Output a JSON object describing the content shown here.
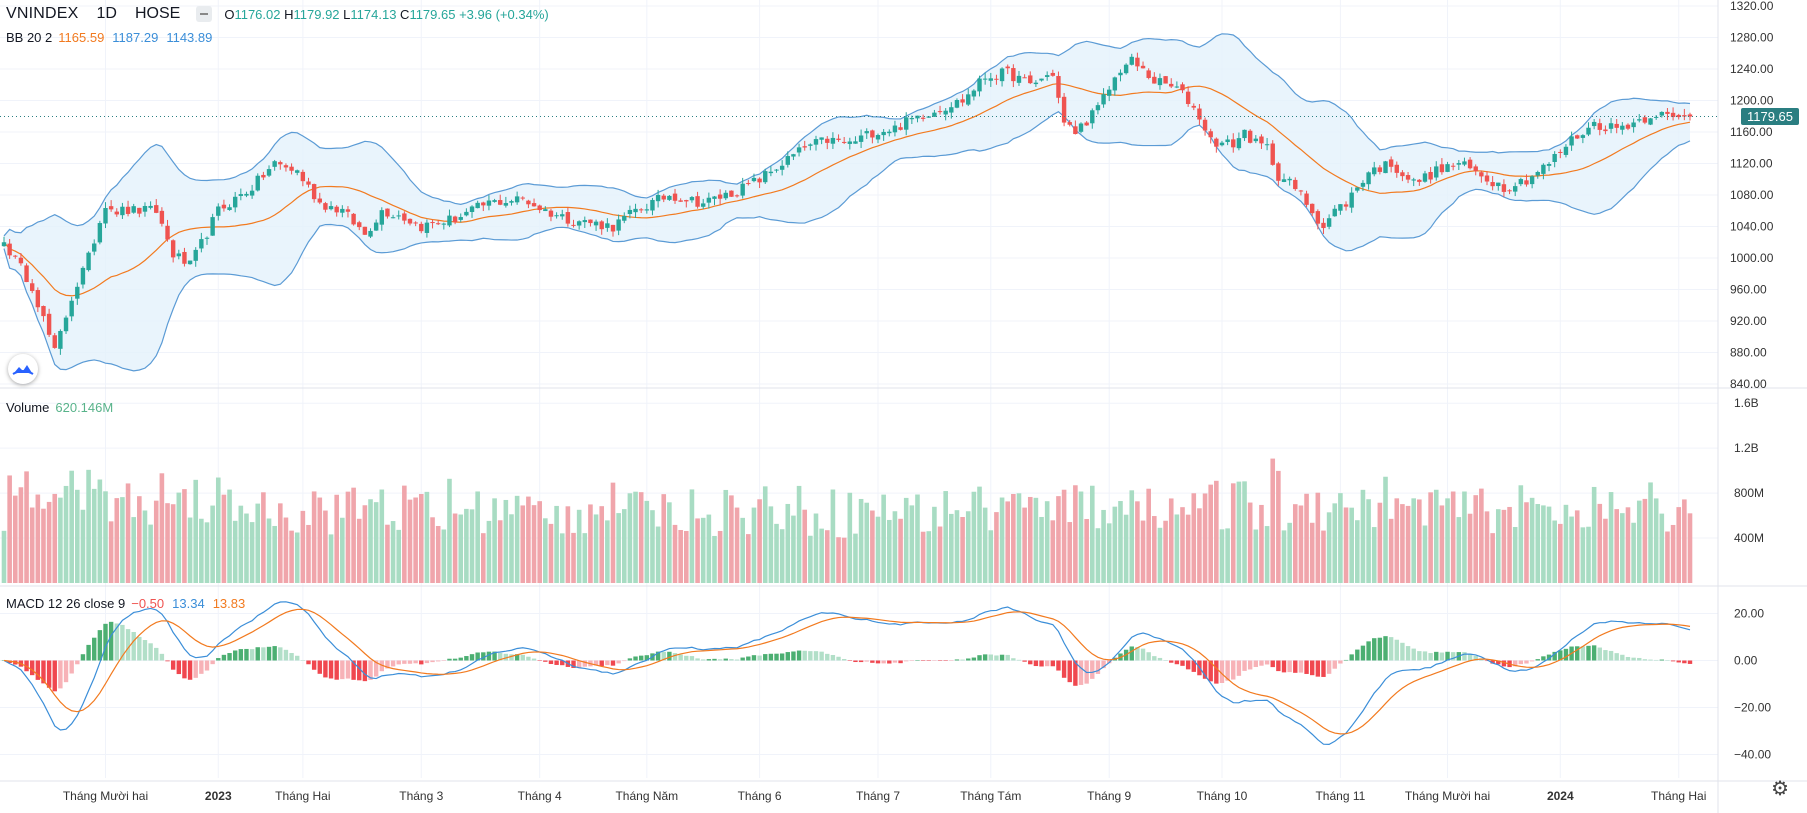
{
  "legend": {
    "symbol": "VNINDEX",
    "interval": "1D",
    "exchange": "HOSE",
    "open_label": "O",
    "open": "1176.02",
    "high_label": "H",
    "high": "1179.92",
    "low_label": "L",
    "low": "1174.13",
    "close_label": "C",
    "close": "1179.65",
    "change": "+3.96 (+0.34%)"
  },
  "indicators": {
    "bb": {
      "label": "BB 20 2",
      "basis": "1165.59",
      "upper": "1187.29",
      "lower": "1143.89"
    },
    "volume": {
      "label": "Volume",
      "value": "620.146M"
    },
    "macd": {
      "label": "MACD 12 26 close 9",
      "hist": "−0.50",
      "macd": "13.34",
      "signal": "13.83"
    }
  },
  "last_price_tag": "1179.65",
  "colors": {
    "up": "#26a69a",
    "down": "#ef5350",
    "candle_up": "#26a69a",
    "candle_down": "#ef5350",
    "vol_up": "#a8dcc3",
    "vol_down": "#f0a5ab",
    "bb_basis": "#f27a1f",
    "bb_band": "#5b9bd5",
    "bb_fill": "#e3f1fb",
    "macd_line": "#3b8ed8",
    "signal_line": "#f27a1f",
    "hist_up_strong": "#4caf72",
    "hist_up_weak": "#b2dfc8",
    "hist_down_strong": "#f0474f",
    "hist_down_weak": "#f7b2b7",
    "grid": "#f0f3fa",
    "last_price": "#2a7e81"
  },
  "icons": {
    "logo": "tradingview-cloud-icon",
    "settings": "gear-icon"
  },
  "chart_data": [
    {
      "type": "candlestick",
      "title": "VNINDEX",
      "y_ticks": [
        "1320.00",
        "1280.00",
        "1240.00",
        "1200.00",
        "1160.00",
        "1120.00",
        "1080.00",
        "1040.00",
        "1000.00",
        "960.00",
        "920.00",
        "880.00",
        "840.00"
      ],
      "ylim": [
        840,
        1320
      ],
      "x_ticks": [
        "Tháng Mười hai",
        "2023",
        "Tháng Hai",
        "Tháng 3",
        "Tháng 4",
        "Tháng Năm",
        "Tháng 6",
        "Tháng 7",
        "Tháng Tám",
        "Tháng 9",
        "Tháng 10",
        "Tháng 11",
        "Tháng Mười hai",
        "2024",
        "Tháng Hai"
      ],
      "x_tick_index": [
        18,
        38,
        53,
        74,
        95,
        114,
        134,
        155,
        175,
        196,
        216,
        237,
        256,
        276,
        297
      ],
      "close_anchors": [
        [
          0,
          1020
        ],
        [
          5,
          965
        ],
        [
          9,
          880
        ],
        [
          12,
          950
        ],
        [
          15,
          1000
        ],
        [
          18,
          1070
        ],
        [
          20,
          1060
        ],
        [
          27,
          1060
        ],
        [
          30,
          1005
        ],
        [
          33,
          990
        ],
        [
          38,
          1060
        ],
        [
          44,
          1090
        ],
        [
          48,
          1120
        ],
        [
          52,
          1110
        ],
        [
          56,
          1070
        ],
        [
          60,
          1060
        ],
        [
          64,
          1030
        ],
        [
          67,
          1060
        ],
        [
          70,
          1055
        ],
        [
          74,
          1040
        ],
        [
          80,
          1050
        ],
        [
          86,
          1070
        ],
        [
          92,
          1075
        ],
        [
          96,
          1060
        ],
        [
          100,
          1050
        ],
        [
          104,
          1045
        ],
        [
          108,
          1040
        ],
        [
          112,
          1060
        ],
        [
          118,
          1080
        ],
        [
          124,
          1070
        ],
        [
          130,
          1085
        ],
        [
          134,
          1100
        ],
        [
          138,
          1120
        ],
        [
          142,
          1140
        ],
        [
          146,
          1150
        ],
        [
          150,
          1145
        ],
        [
          154,
          1160
        ],
        [
          158,
          1165
        ],
        [
          162,
          1180
        ],
        [
          166,
          1190
        ],
        [
          170,
          1200
        ],
        [
          174,
          1230
        ],
        [
          178,
          1235
        ],
        [
          182,
          1220
        ],
        [
          186,
          1235
        ],
        [
          188,
          1170
        ],
        [
          190,
          1160
        ],
        [
          194,
          1190
        ],
        [
          198,
          1240
        ],
        [
          200,
          1250
        ],
        [
          204,
          1225
        ],
        [
          208,
          1215
        ],
        [
          210,
          1200
        ],
        [
          212,
          1180
        ],
        [
          214,
          1150
        ],
        [
          216,
          1145
        ],
        [
          218,
          1145
        ],
        [
          220,
          1160
        ],
        [
          222,
          1145
        ],
        [
          224,
          1140
        ],
        [
          226,
          1105
        ],
        [
          228,
          1095
        ],
        [
          230,
          1080
        ],
        [
          234,
          1040
        ],
        [
          236,
          1060
        ],
        [
          238,
          1070
        ],
        [
          242,
          1110
        ],
        [
          246,
          1120
        ],
        [
          250,
          1095
        ],
        [
          254,
          1110
        ],
        [
          258,
          1120
        ],
        [
          262,
          1105
        ],
        [
          266,
          1090
        ],
        [
          270,
          1100
        ],
        [
          274,
          1120
        ],
        [
          278,
          1150
        ],
        [
          282,
          1170
        ],
        [
          286,
          1165
        ],
        [
          290,
          1175
        ],
        [
          293,
          1185
        ],
        [
          296,
          1176
        ],
        [
          299,
          1179.65
        ]
      ],
      "bb": {
        "basis": 1165.59,
        "upper": 1187.29,
        "lower": 1143.89
      },
      "last_close": 1179.65
    },
    {
      "type": "bar",
      "title": "Volume",
      "y_ticks": [
        "1.6B",
        "1.2B",
        "800M",
        "400M"
      ],
      "ylim": [
        0,
        1700
      ],
      "unit": "M",
      "last_value": 620.146
    },
    {
      "type": "line",
      "title": "MACD 12 26 close 9",
      "y_ticks": [
        "20.00",
        "0.00",
        "−20.00",
        "−40.00"
      ],
      "ylim": [
        -50,
        30
      ],
      "last": {
        "hist": -0.5,
        "macd": 13.34,
        "signal": 13.83
      }
    }
  ]
}
